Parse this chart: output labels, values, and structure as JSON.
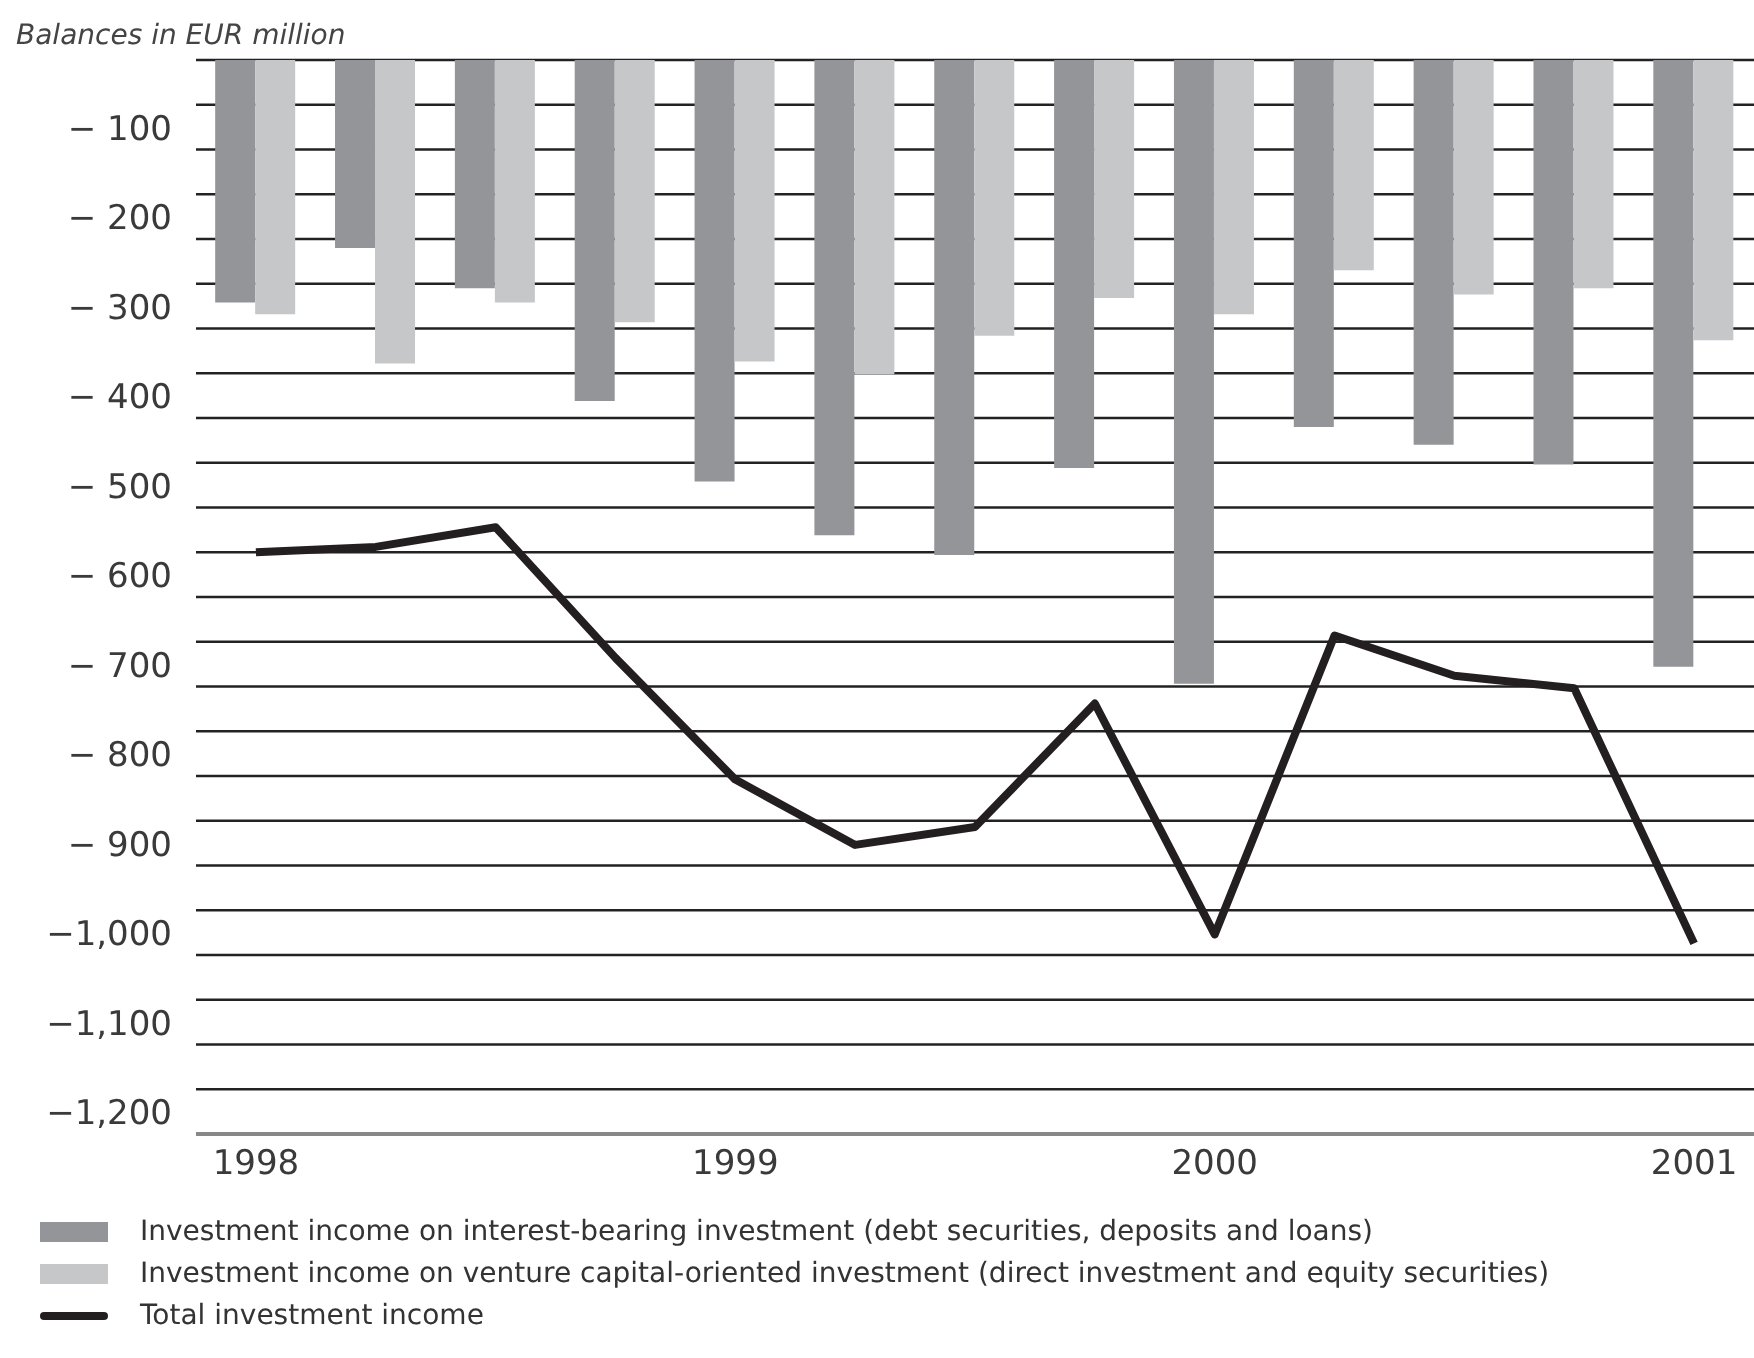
{
  "chart_data": {
    "type": "bar",
    "ylabel": "Balances in EUR million",
    "categories": [
      "1998",
      null,
      null,
      null,
      "1999",
      null,
      null,
      null,
      "2000",
      null,
      null,
      null,
      "2001"
    ],
    "series": [
      {
        "name": "Investment income on interest-bearing investment (debt securities, deposits and loans)",
        "color": "#939598",
        "values": [
          -271,
          -210,
          -255,
          -381,
          -471,
          -531,
          -553,
          -456,
          -697,
          -410,
          -430,
          -452,
          -678
        ]
      },
      {
        "name": "Investment income on venture capital-oriented investment (direct investment and equity securities)",
        "color": "#c6c7c9",
        "values": [
          -284,
          -339,
          -271,
          -293,
          -337,
          -351,
          -308,
          -266,
          -284,
          -235,
          -262,
          -255,
          -313
        ]
      },
      {
        "name": "Total investment income",
        "type": "line",
        "color": "#231f20",
        "values": [
          -550,
          -544,
          -522,
          -668,
          -804,
          -877,
          -857,
          -719,
          -977,
          -643,
          -688,
          -702,
          -987
        ]
      }
    ],
    "ylim": [
      -1200,
      0
    ],
    "yticks": [
      {
        "value": 0,
        "label": null
      },
      {
        "value": -50,
        "label": null
      },
      {
        "value": -100,
        "label": "− 100"
      },
      {
        "value": -150,
        "label": null
      },
      {
        "value": -200,
        "label": "− 200"
      },
      {
        "value": -250,
        "label": null
      },
      {
        "value": -300,
        "label": "− 300"
      },
      {
        "value": -350,
        "label": null
      },
      {
        "value": -400,
        "label": "− 400"
      },
      {
        "value": -450,
        "label": null
      },
      {
        "value": -500,
        "label": "− 500"
      },
      {
        "value": -550,
        "label": null
      },
      {
        "value": -600,
        "label": "− 600"
      },
      {
        "value": -650,
        "label": null
      },
      {
        "value": -700,
        "label": "− 700"
      },
      {
        "value": -750,
        "label": null
      },
      {
        "value": -800,
        "label": "− 800"
      },
      {
        "value": -850,
        "label": null
      },
      {
        "value": -900,
        "label": "− 900"
      },
      {
        "value": -950,
        "label": null
      },
      {
        "value": -1000,
        "label": "−1,000"
      },
      {
        "value": -1050,
        "label": null
      },
      {
        "value": -1100,
        "label": "−1,100"
      },
      {
        "value": -1150,
        "label": null
      },
      {
        "value": -1200,
        "label": "−1,200"
      }
    ],
    "grid": "y",
    "legend": "bottom",
    "marker": "none",
    "line_style": "solid"
  }
}
